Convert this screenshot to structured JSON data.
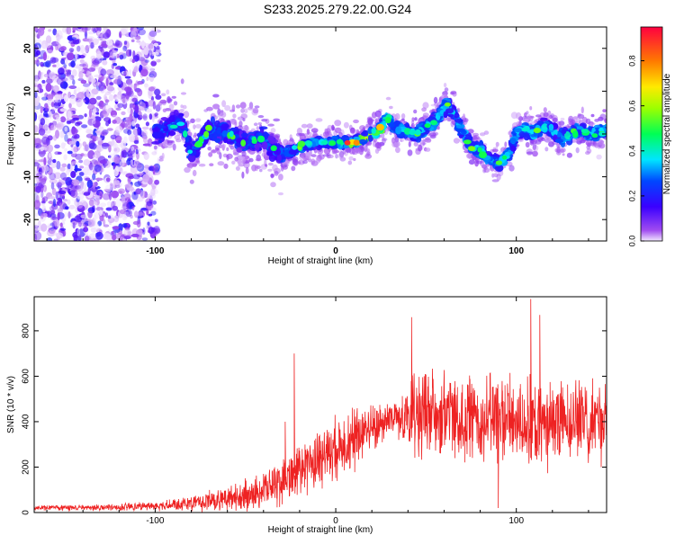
{
  "chart_data": [
    {
      "type": "heatmap",
      "title": "S233.2025.279.22.00.G24",
      "xlabel": "Height of straight line (km)",
      "ylabel": "Frequency (Hz)",
      "xlim": [
        -167,
        150
      ],
      "ylim": [
        -25,
        25
      ],
      "xticks": [
        -100,
        0,
        100
      ],
      "yticks": [
        -20,
        -10,
        0,
        10,
        20
      ],
      "colorbar": {
        "label": "Normalized spectral amplitude",
        "range": [
          0.0,
          0.95
        ],
        "ticks": [
          "0.0",
          "0.2",
          "0.4",
          "0.6",
          "0.8"
        ]
      },
      "ridge": {
        "x": [
          -100,
          -92,
          -85,
          -80,
          -70,
          -60,
          -50,
          -40,
          -30,
          -20,
          -10,
          0,
          10,
          20,
          25,
          28,
          35,
          45,
          55,
          62,
          65,
          70,
          75,
          80,
          85,
          90,
          95,
          100,
          105,
          110,
          115,
          120,
          125,
          130,
          135,
          140,
          145,
          150
        ],
        "y": [
          0,
          2,
          3,
          -5,
          1,
          0,
          -2,
          -1,
          -5,
          -3,
          -2,
          -2,
          -2,
          0,
          1,
          4,
          1,
          0,
          3,
          7,
          5,
          1,
          -3,
          -4,
          -6,
          -7,
          -5,
          0,
          1,
          0,
          2,
          1,
          -1,
          0,
          1,
          0,
          0,
          1
        ]
      }
    },
    {
      "type": "line",
      "xlabel": "Height of straight line (km)",
      "ylabel": "SNR (10 * v/v)",
      "xlim": [
        -167,
        150
      ],
      "ylim": [
        0,
        950
      ],
      "xticks": [
        -100,
        0,
        100
      ],
      "yticks": [
        0,
        200,
        400,
        600,
        800
      ],
      "color": "#ee2222",
      "envelope": {
        "x": [
          -167,
          -130,
          -100,
          -80,
          -60,
          -45,
          -30,
          -20,
          -10,
          0,
          10,
          20,
          30,
          35,
          40,
          60,
          80,
          100,
          120,
          140,
          150
        ],
        "mean": [
          20,
          22,
          28,
          40,
          60,
          90,
          130,
          190,
          240,
          290,
          330,
          370,
          410,
          420,
          430,
          430,
          410,
          400,
          390,
          410,
          420
        ],
        "amplitude": [
          8,
          10,
          14,
          24,
          38,
          55,
          70,
          85,
          95,
          100,
          100,
          85,
          70,
          70,
          150,
          150,
          140,
          140,
          140,
          140,
          140
        ]
      },
      "spikes": [
        {
          "x": -23,
          "y": 700
        },
        {
          "x": -28,
          "y": 400
        },
        {
          "x": 42,
          "y": 860
        },
        {
          "x": 108,
          "y": 940
        },
        {
          "x": 113,
          "y": 870
        },
        {
          "x": 90,
          "y": 20
        },
        {
          "x": 147,
          "y": 200
        }
      ]
    }
  ]
}
